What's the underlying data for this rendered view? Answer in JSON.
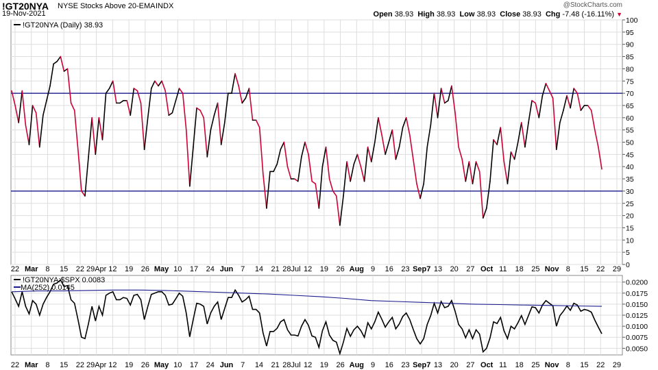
{
  "header": {
    "symbol": "!GT20NYA",
    "description": "NYSE Stocks Above 20-EMA",
    "exchange": "INDX",
    "date": "19-Nov-2021",
    "watermark": "@StockCharts.com",
    "open_label": "Open",
    "open_value": "38.93",
    "high_label": "High",
    "high_value": "38.93",
    "low_label": "Low",
    "low_value": "38.93",
    "close_label": "Close",
    "close_value": "38.93",
    "chg_label": "Chg",
    "chg_value": "-7.48 (-16.11%)"
  },
  "colors": {
    "up": "#000000",
    "down": "#cc0033",
    "ref_line": "#000080",
    "ma_line": "#1a1a8c",
    "grid": "#dddddd"
  },
  "chart_data": [
    {
      "type": "line",
      "title": "",
      "legend": "!GT20NYA (Daily) 38.93",
      "legend_placement": "top-left",
      "ylim": [
        0,
        100
      ],
      "ytick_labels": [
        "0",
        "5",
        "10",
        "15",
        "20",
        "25",
        "30",
        "35",
        "40",
        "45",
        "50",
        "55",
        "60",
        "65",
        "70",
        "75",
        "80",
        "85",
        "90",
        "95",
        "100"
      ],
      "reference_lines": [
        30,
        70
      ],
      "xtick_labels": [
        "22",
        "Mar",
        "8",
        "15",
        "22",
        "29Apr",
        "12",
        "19",
        "26",
        "May",
        "10",
        "17",
        "24",
        "Jun",
        "7",
        "14",
        "21",
        "28Jul",
        "12",
        "19",
        "26",
        "Aug",
        "9",
        "16",
        "23",
        "Sep7",
        "13",
        "20",
        "27",
        "Oct",
        "11",
        "18",
        "25",
        "Nov",
        "8",
        "15",
        "22",
        "29"
      ],
      "bold_xtick_labels": [
        "Mar",
        "Apr",
        "May",
        "Jun",
        "Jul",
        "Aug",
        "Sep",
        "Oct",
        "Nov"
      ],
      "series": [
        {
          "values": [
            71,
            65,
            58,
            71,
            57,
            49,
            65,
            62,
            48,
            61,
            67,
            73,
            82,
            83,
            85,
            79,
            80,
            66,
            63,
            47,
            30,
            28,
            44,
            60,
            45,
            60,
            51,
            70,
            72,
            75,
            66,
            66,
            67,
            67,
            61,
            72,
            71,
            66,
            47,
            60,
            72,
            75,
            73,
            75,
            71,
            61,
            62,
            67,
            72,
            70,
            55,
            32,
            48,
            64,
            63,
            60,
            44,
            55,
            61,
            66,
            49,
            58,
            70,
            70,
            78,
            73,
            66,
            68,
            72,
            59,
            59,
            56,
            37,
            23,
            38,
            38,
            41,
            47,
            50,
            40,
            35,
            35,
            34,
            44,
            50,
            45,
            34,
            33,
            23,
            40,
            48,
            35,
            30,
            28,
            16,
            28,
            42,
            34,
            41,
            45,
            40,
            34,
            48,
            42,
            50,
            60,
            53,
            45,
            50,
            55,
            43,
            48,
            56,
            60,
            53,
            43,
            33,
            27,
            33,
            48,
            57,
            70,
            60,
            72,
            66,
            67,
            73,
            62,
            48,
            43,
            34,
            42,
            33,
            42,
            38,
            19,
            23,
            34,
            51,
            49,
            56,
            42,
            33,
            46,
            43,
            50,
            58,
            48,
            58,
            67,
            66,
            60,
            69,
            74,
            71,
            68,
            47,
            58,
            63,
            69,
            64,
            72,
            70,
            63,
            65,
            65,
            63,
            55,
            48,
            39
          ]
        }
      ]
    },
    {
      "type": "line",
      "title": "",
      "legend": "!GT20NYA:$SPX 0.0083",
      "legend_placement": "top-left",
      "ylim": [
        0.0035,
        0.0215
      ],
      "ytick_labels": [
        "0.0050",
        "0.0075",
        "0.0100",
        "0.0125",
        "0.0150",
        "0.0175",
        "0.0200"
      ],
      "xtick_labels": [
        "22",
        "Mar",
        "8",
        "15",
        "22",
        "29Apr",
        "12",
        "19",
        "26",
        "May",
        "10",
        "17",
        "24",
        "Jun",
        "7",
        "14",
        "21",
        "28Jul",
        "12",
        "19",
        "26",
        "Aug",
        "9",
        "16",
        "23",
        "Sep7",
        "13",
        "20",
        "27",
        "Oct",
        "11",
        "18",
        "25",
        "Nov",
        "8",
        "15",
        "22",
        "29"
      ],
      "series": [
        {
          "name": "!GT20NYA:$SPX",
          "values": [
            0.0178,
            0.0162,
            0.0145,
            0.0178,
            0.0145,
            0.0128,
            0.0158,
            0.015,
            0.0125,
            0.015,
            0.0165,
            0.0178,
            0.0195,
            0.0198,
            0.0205,
            0.019,
            0.0192,
            0.016,
            0.0152,
            0.0115,
            0.0075,
            0.0072,
            0.0106,
            0.0145,
            0.0112,
            0.0145,
            0.0125,
            0.017,
            0.0175,
            0.0178,
            0.016,
            0.016,
            0.0165,
            0.0163,
            0.0148,
            0.017,
            0.0172,
            0.016,
            0.0115,
            0.0145,
            0.0172,
            0.0175,
            0.0178,
            0.0178,
            0.017,
            0.0148,
            0.015,
            0.0162,
            0.0175,
            0.0168,
            0.013,
            0.0076,
            0.0115,
            0.0152,
            0.015,
            0.0145,
            0.0105,
            0.013,
            0.0145,
            0.0155,
            0.0115,
            0.014,
            0.0165,
            0.0165,
            0.0182,
            0.017,
            0.0155,
            0.016,
            0.0168,
            0.0138,
            0.0138,
            0.013,
            0.0085,
            0.0055,
            0.0088,
            0.0088,
            0.0095,
            0.011,
            0.0115,
            0.0092,
            0.008,
            0.008,
            0.0078,
            0.01,
            0.0115,
            0.0102,
            0.0078,
            0.0075,
            0.0052,
            0.009,
            0.011,
            0.008,
            0.0068,
            0.0064,
            0.0038,
            0.0064,
            0.0095,
            0.0077,
            0.0092,
            0.01,
            0.009,
            0.0075,
            0.0108,
            0.0094,
            0.011,
            0.0132,
            0.0116,
            0.0098,
            0.011,
            0.012,
            0.0094,
            0.0105,
            0.0122,
            0.013,
            0.0115,
            0.0093,
            0.0072,
            0.006,
            0.0072,
            0.0104,
            0.0124,
            0.0152,
            0.013,
            0.0156,
            0.0142,
            0.0145,
            0.0158,
            0.0134,
            0.0104,
            0.0094,
            0.0074,
            0.0092,
            0.0072,
            0.0092,
            0.0082,
            0.0042,
            0.005,
            0.0074,
            0.011,
            0.0106,
            0.012,
            0.009,
            0.0072,
            0.01,
            0.0094,
            0.0108,
            0.0124,
            0.0104,
            0.0124,
            0.0144,
            0.0142,
            0.013,
            0.0148,
            0.0158,
            0.0152,
            0.0146,
            0.01,
            0.0124,
            0.0134,
            0.0146,
            0.0136,
            0.0152,
            0.0148,
            0.0134,
            0.0138,
            0.0136,
            0.0132,
            0.0114,
            0.0098,
            0.0083
          ]
        },
        {
          "name": "MA(252) 0.0145",
          "values": [
            0.0178,
            0.018,
            0.018,
            0.0181,
            0.0182,
            0.0182,
            0.0181,
            0.0179,
            0.0177,
            0.0175,
            0.0173,
            0.017,
            0.0167,
            0.0163,
            0.0158,
            0.0156,
            0.0154,
            0.0152,
            0.015,
            0.0149,
            0.0148,
            0.0147,
            0.0146,
            0.0145
          ]
        }
      ]
    }
  ]
}
